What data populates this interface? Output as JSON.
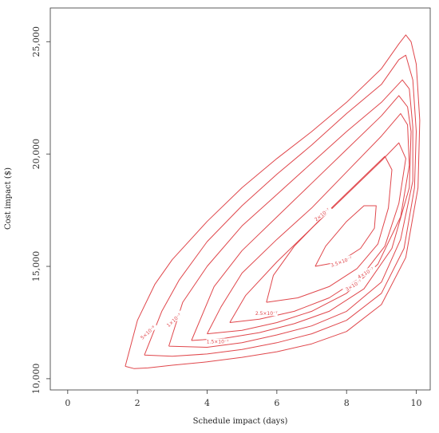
{
  "chart_data": {
    "type": "contour",
    "xlabel": "Schedule impact (days)",
    "ylabel": "Cost impact ($)",
    "xlim": [
      -0.5,
      10.4
    ],
    "ylim": [
      9500,
      26500
    ],
    "x_ticks": [
      0,
      2,
      4,
      6,
      8,
      10
    ],
    "x_tick_labels": [
      "0",
      "2",
      "4",
      "6",
      "8",
      "10"
    ],
    "y_ticks": [
      10000,
      15000,
      20000,
      25000
    ],
    "y_tick_labels": [
      "10,000",
      "15,000",
      "20,000",
      "25,000"
    ],
    "grid": false,
    "line_color": "#e0474c",
    "contours": [
      {
        "label": "5×10⁻⁸",
        "label_at": [
          2.3,
          12050
        ],
        "label_angle": -42,
        "points": [
          [
            1.65,
            10550
          ],
          [
            1.9,
            10450
          ],
          [
            2.3,
            10480
          ],
          [
            3,
            10600
          ],
          [
            4,
            10750
          ],
          [
            5,
            10950
          ],
          [
            6,
            11200
          ],
          [
            7,
            11550
          ],
          [
            8,
            12100
          ],
          [
            9,
            13300
          ],
          [
            9.7,
            15400
          ],
          [
            10.05,
            18500
          ],
          [
            10.1,
            21500
          ],
          [
            10,
            24000
          ],
          [
            9.85,
            25000
          ],
          [
            9.7,
            25300
          ],
          [
            9.5,
            24900
          ],
          [
            9,
            23800
          ],
          [
            8,
            22300
          ],
          [
            7,
            21000
          ],
          [
            6,
            19800
          ],
          [
            5,
            18500
          ],
          [
            4,
            17000
          ],
          [
            3,
            15300
          ],
          [
            2.5,
            14200
          ],
          [
            2,
            12600
          ],
          [
            1.65,
            10550
          ]
        ]
      },
      {
        "label": "1×10⁻⁷",
        "label_at": [
          3.05,
          12600
        ],
        "label_angle": -42,
        "points": [
          [
            2.2,
            11050
          ],
          [
            3,
            11000
          ],
          [
            4,
            11100
          ],
          [
            5,
            11300
          ],
          [
            6,
            11600
          ],
          [
            7,
            12000
          ],
          [
            8,
            12600
          ],
          [
            9,
            13800
          ],
          [
            9.65,
            15800
          ],
          [
            9.95,
            18500
          ],
          [
            10,
            21000
          ],
          [
            9.9,
            23300
          ],
          [
            9.7,
            24400
          ],
          [
            9.5,
            24200
          ],
          [
            9,
            23100
          ],
          [
            8,
            21800
          ],
          [
            7,
            20400
          ],
          [
            6,
            19100
          ],
          [
            5,
            17700
          ],
          [
            4,
            16100
          ],
          [
            3.2,
            14400
          ],
          [
            2.7,
            13000
          ],
          [
            2.2,
            11050
          ]
        ]
      },
      {
        "label": "1.5×10⁻⁷",
        "label_at": [
          4.3,
          11650
        ],
        "label_angle": 0,
        "points": [
          [
            2.9,
            11450
          ],
          [
            4,
            11400
          ],
          [
            5,
            11600
          ],
          [
            6,
            11950
          ],
          [
            7,
            12350
          ],
          [
            8,
            13000
          ],
          [
            9,
            14300
          ],
          [
            9.55,
            16200
          ],
          [
            9.9,
            18800
          ],
          [
            9.9,
            21200
          ],
          [
            9.8,
            22900
          ],
          [
            9.6,
            23300
          ],
          [
            9,
            22300
          ],
          [
            8,
            21000
          ],
          [
            7,
            19600
          ],
          [
            6,
            18200
          ],
          [
            5,
            16800
          ],
          [
            4,
            15000
          ],
          [
            3.3,
            13400
          ],
          [
            2.9,
            11450
          ]
        ]
      },
      {
        "label": "2×10⁻⁷",
        "label_at": [
          7.3,
          17300
        ],
        "label_angle": -38,
        "points": [
          [
            3.55,
            11700
          ],
          [
            4.5,
            11800
          ],
          [
            5.5,
            12050
          ],
          [
            6.5,
            12450
          ],
          [
            7.5,
            13000
          ],
          [
            8.5,
            14000
          ],
          [
            9.3,
            15800
          ],
          [
            9.8,
            18500
          ],
          [
            9.85,
            21000
          ],
          [
            9.75,
            22100
          ],
          [
            9.5,
            22600
          ],
          [
            9,
            21700
          ],
          [
            8,
            20200
          ],
          [
            7,
            18700
          ],
          [
            6,
            17200
          ],
          [
            5,
            15700
          ],
          [
            4.2,
            14100
          ],
          [
            3.55,
            11700
          ]
        ]
      },
      {
        "label": "2.5×10⁻⁷",
        "label_at": [
          5.7,
          12900
        ],
        "label_angle": 0,
        "points": [
          [
            4,
            12000
          ],
          [
            5,
            12150
          ],
          [
            6,
            12500
          ],
          [
            7,
            13000
          ],
          [
            8,
            13800
          ],
          [
            8.9,
            15100
          ],
          [
            9.55,
            17200
          ],
          [
            9.8,
            19500
          ],
          [
            9.75,
            21300
          ],
          [
            9.55,
            21800
          ],
          [
            9,
            20800
          ],
          [
            8,
            19200
          ],
          [
            7,
            17600
          ],
          [
            6,
            16200
          ],
          [
            5,
            14700
          ],
          [
            4.4,
            13200
          ],
          [
            4,
            12000
          ]
        ]
      },
      {
        "label": "3×10⁻⁷",
        "label_at": [
          8.2,
          14150
        ],
        "label_angle": -30,
        "points": [
          [
            4.65,
            12500
          ],
          [
            5.5,
            12650
          ],
          [
            6.5,
            13000
          ],
          [
            7.5,
            13600
          ],
          [
            8.4,
            14500
          ],
          [
            9.1,
            15900
          ],
          [
            9.5,
            17800
          ],
          [
            9.7,
            19800
          ],
          [
            9.5,
            20500
          ],
          [
            9,
            19700
          ],
          [
            8,
            18200
          ],
          [
            7,
            16700
          ],
          [
            6,
            15200
          ],
          [
            5.1,
            13700
          ],
          [
            4.65,
            12500
          ]
        ]
      },
      {
        "label": "3.5×10⁻⁷",
        "label_at": [
          7.85,
          15200
        ],
        "label_angle": -20,
        "points": [
          [
            5.7,
            13400
          ],
          [
            6.6,
            13600
          ],
          [
            7.5,
            14100
          ],
          [
            8.3,
            14900
          ],
          [
            8.9,
            16000
          ],
          [
            9.2,
            17600
          ],
          [
            9.3,
            19300
          ],
          [
            9.1,
            19900
          ],
          [
            8.5,
            19000
          ],
          [
            7.5,
            17500
          ],
          [
            6.5,
            15900
          ],
          [
            5.9,
            14600
          ],
          [
            5.7,
            13400
          ]
        ]
      },
      {
        "label": "4×10⁻⁷",
        "label_at": [
          8.55,
          14700
        ],
        "label_angle": -30,
        "points": [
          [
            7.1,
            15000
          ],
          [
            7.8,
            15200
          ],
          [
            8.4,
            15800
          ],
          [
            8.8,
            16700
          ],
          [
            8.85,
            17700
          ],
          [
            8.5,
            17700
          ],
          [
            8,
            17000
          ],
          [
            7.4,
            15900
          ],
          [
            7.1,
            15000
          ]
        ]
      }
    ]
  }
}
